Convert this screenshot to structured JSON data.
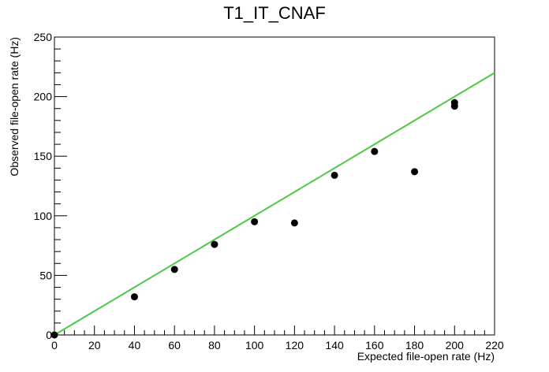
{
  "chart_data": {
    "type": "scatter",
    "title": "T1_IT_CNAF",
    "xlabel": "Expected file-open rate (Hz)",
    "ylabel": "Observed file-open rate (Hz)",
    "xlim": [
      0,
      220
    ],
    "ylim": [
      0,
      250
    ],
    "xticks": [
      "0",
      "20",
      "40",
      "60",
      "80",
      "100",
      "120",
      "140",
      "160",
      "180",
      "200",
      "220"
    ],
    "yticks": [
      "0",
      "50",
      "100",
      "150",
      "200",
      "250"
    ],
    "grid": false,
    "series": [
      {
        "marker_color": "#000000",
        "points": [
          {
            "x": 0,
            "y": 0
          },
          {
            "x": 40,
            "y": 32
          },
          {
            "x": 60,
            "y": 55
          },
          {
            "x": 80,
            "y": 76
          },
          {
            "x": 100,
            "y": 95
          },
          {
            "x": 120,
            "y": 94
          },
          {
            "x": 140,
            "y": 134
          },
          {
            "x": 160,
            "y": 154
          },
          {
            "x": 180,
            "y": 137
          },
          {
            "x": 200,
            "y": 192
          },
          {
            "x": 200,
            "y": 195
          }
        ]
      }
    ],
    "reference_line": {
      "color": "#4fc846",
      "from": [
        0,
        0
      ],
      "to": [
        220,
        220
      ]
    }
  }
}
